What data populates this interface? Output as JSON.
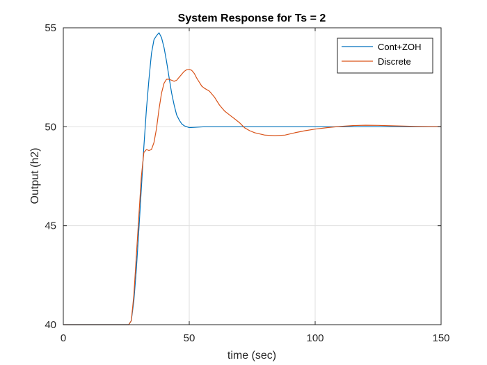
{
  "chart_data": {
    "type": "line",
    "title": "System Response for Ts = 2",
    "xlabel": "time (sec)",
    "ylabel": "Output (h2)",
    "xlim": [
      0,
      150
    ],
    "ylim": [
      40,
      55
    ],
    "xticks": [
      0,
      50,
      100,
      150
    ],
    "yticks": [
      40,
      45,
      50,
      55
    ],
    "grid": true,
    "legend_position": "top-right",
    "series": [
      {
        "name": "Cont+ZOH",
        "color": "#0072bd",
        "x": [
          0,
          26,
          27,
          28,
          29,
          30,
          31,
          32,
          33,
          34,
          35,
          36,
          37,
          38,
          39,
          40,
          41,
          42,
          43,
          44,
          45,
          46,
          47,
          48,
          50,
          52,
          56,
          60,
          70,
          80,
          100,
          120,
          150
        ],
        "y": [
          40,
          40,
          40.2,
          41.2,
          42.8,
          44.8,
          46.9,
          49.0,
          50.9,
          52.4,
          53.7,
          54.4,
          54.6,
          54.75,
          54.5,
          54.0,
          53.3,
          52.5,
          51.7,
          51.1,
          50.6,
          50.35,
          50.15,
          50.05,
          49.96,
          49.97,
          50.0,
          50.0,
          50.0,
          50.0,
          50.0,
          50.0,
          50.0
        ]
      },
      {
        "name": "Discrete",
        "color": "#d95319",
        "x": [
          0,
          26,
          27,
          28,
          29,
          30,
          31,
          32,
          33,
          34,
          35,
          36,
          37,
          38,
          39,
          40,
          41,
          42,
          43,
          44,
          45,
          46,
          47,
          48,
          49,
          50,
          51,
          52,
          53,
          54,
          55,
          56,
          58,
          60,
          62,
          64,
          66,
          68,
          70,
          72,
          74,
          76,
          80,
          84,
          88,
          92,
          96,
          100,
          105,
          110,
          115,
          120,
          125,
          130,
          140,
          150
        ],
        "y": [
          40,
          40,
          40.2,
          41.5,
          43.5,
          45.5,
          47.5,
          48.7,
          48.85,
          48.8,
          48.85,
          49.2,
          49.9,
          50.9,
          51.7,
          52.2,
          52.4,
          52.4,
          52.35,
          52.3,
          52.35,
          52.5,
          52.65,
          52.8,
          52.88,
          52.9,
          52.85,
          52.7,
          52.45,
          52.25,
          52.05,
          51.95,
          51.8,
          51.5,
          51.1,
          50.8,
          50.6,
          50.4,
          50.2,
          49.95,
          49.8,
          49.7,
          49.58,
          49.55,
          49.58,
          49.7,
          49.8,
          49.88,
          49.96,
          50.02,
          50.06,
          50.08,
          50.07,
          50.05,
          50.02,
          50.0
        ]
      }
    ]
  }
}
